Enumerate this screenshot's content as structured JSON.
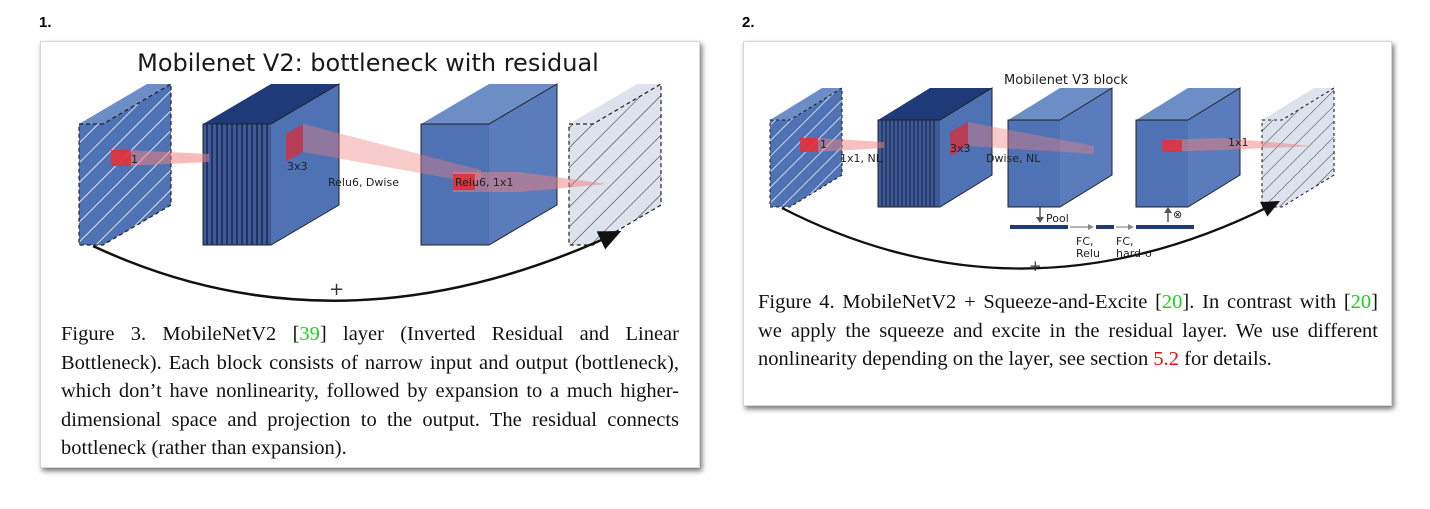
{
  "panels": [
    {
      "number": "1.",
      "diagram_title": "Mobilenet V2: bottleneck with residual",
      "labels": {
        "input_op": "1",
        "expand_op": "3x3",
        "dwise": "Relu6, Dwise",
        "project": "Relu6, 1x1",
        "plus": "+"
      },
      "caption": {
        "prefix": "Figure 3. MobileNetV2 [",
        "ref": "39",
        "suffix": "] layer (Inverted Residual and Linear Bottleneck). Each block consists of narrow input and output (bottleneck), which don’t have nonlinearity, followed by expansion to a much higher-dimensional space and projection to the output. The residual connects bottleneck (rather than expansion)."
      }
    },
    {
      "number": "2.",
      "diagram_title": "Mobilenet V3 block",
      "labels": {
        "input_op": "1",
        "op1": "1x1, NL",
        "expand_op": "3x3",
        "dwise": "Dwise, NL",
        "proj": "1x1",
        "pool": "Pool",
        "fc_relu_1": "FC,",
        "fc_relu_2": "Relu",
        "fc_hard_1": "FC,",
        "fc_hard_2": "hard-σ",
        "mult": "⊗",
        "plus": "+"
      },
      "caption": {
        "p1": "Figure 4. MobileNetV2 + Squeeze-and-Excite [",
        "ref1": "20",
        "p2": "]. In contrast with [",
        "ref2": "20",
        "p3": "] we apply the squeeze and excite in the residual layer. We use different nonlinearity depending on the layer, see section ",
        "ref3": "5.2",
        "p4": " for details."
      }
    }
  ],
  "colors": {
    "block_blue": "#4f72b5",
    "block_dark": "#1f3a78",
    "hatch_gray": "#dde2ec",
    "highlight_red": "#e6262e",
    "cite_green": "#19d419",
    "section_red": "#e01010"
  }
}
